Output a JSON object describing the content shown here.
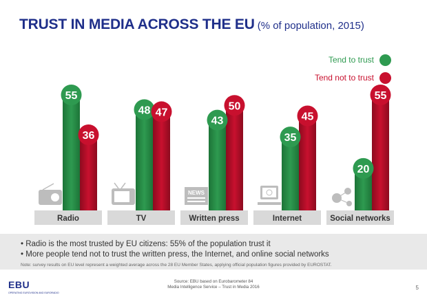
{
  "title": "TRUST IN MEDIA ACROSS THE EU",
  "subtitle": "(% of population, 2015)",
  "legend": {
    "trust_label": "Tend to trust",
    "not_trust_label": "Tend not to trust",
    "placement": "top-right"
  },
  "colors": {
    "trust": "#2e9a50",
    "trust_dark": "#1d7438",
    "not_trust": "#c8102e",
    "not_trust_dark": "#8c0b1f",
    "label_box": "#d9d9d9",
    "icon": "#bdbdbd",
    "title": "#1f2f8a"
  },
  "chart_data": {
    "type": "bar",
    "categories": [
      "Radio",
      "TV",
      "Written press",
      "Internet",
      "Social networks"
    ],
    "series": [
      {
        "name": "Tend to trust",
        "values": [
          55,
          48,
          43,
          35,
          20
        ]
      },
      {
        "name": "Tend not to trust",
        "values": [
          36,
          47,
          50,
          45,
          55
        ]
      }
    ],
    "ylim": [
      0,
      60
    ],
    "grid": false,
    "icons": [
      "radio-icon",
      "tv-icon",
      "newspaper-icon",
      "computer-icon",
      "social-network-icon"
    ],
    "icon_texts": [
      "",
      "",
      "NEWS",
      "",
      ""
    ]
  },
  "bullets": [
    "Radio is the most trusted by EU citizens: 55% of the population trust it",
    "More people tend not to trust the written press, the Internet, and online social networks"
  ],
  "note": "Note: survey results on EU level represent a weighted average across the 28 EU Member States, applying official population figures provided by EUROSTAT.",
  "footer": {
    "logo": "EBU",
    "logo_tagline": "OPERATING EUROVISION AND EURORADIO",
    "source_line1": "Source: EBU based on Eurobarometer 84",
    "source_line2": "Media Intelligence Service – Trust in Media 2016",
    "page": "5"
  }
}
